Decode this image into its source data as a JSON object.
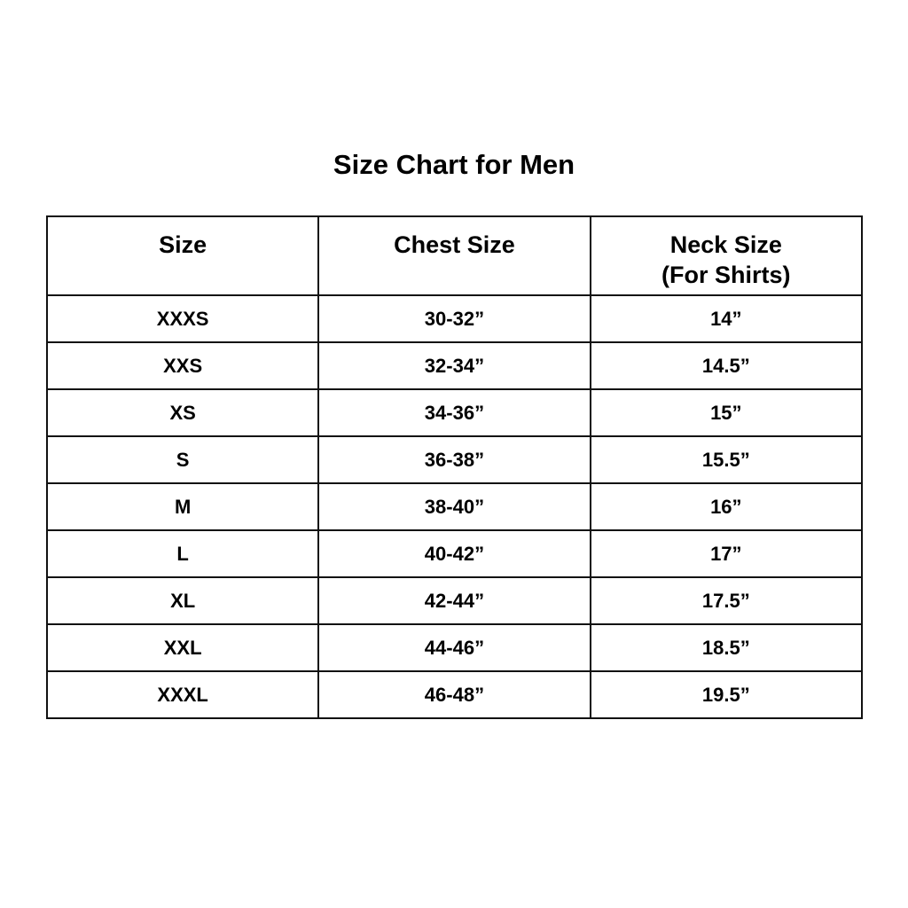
{
  "title": "Size Chart for Men",
  "table": {
    "headers": [
      "Size",
      "Chest Size",
      "Neck Size",
      "(For Shirts)"
    ],
    "rows": [
      [
        "XXXS",
        "30-32”",
        "14”"
      ],
      [
        "XXS",
        "32-34”",
        "14.5”"
      ],
      [
        "XS",
        "34-36”",
        "15”"
      ],
      [
        "S",
        "36-38”",
        "15.5”"
      ],
      [
        "M",
        "38-40”",
        "16”"
      ],
      [
        "L",
        "40-42”",
        "17”"
      ],
      [
        "XL",
        "42-44”",
        "17.5”"
      ],
      [
        "XXL",
        "44-46”",
        "18.5”"
      ],
      [
        "XXXL",
        "46-48”",
        "19.5”"
      ]
    ]
  }
}
